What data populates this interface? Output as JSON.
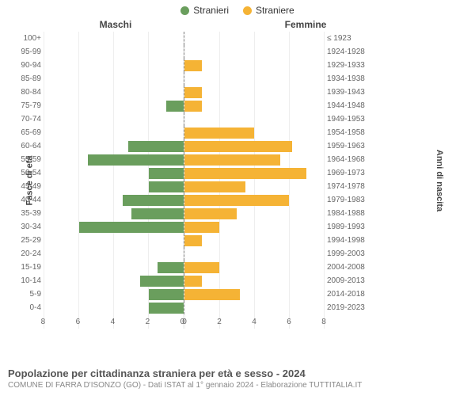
{
  "legend": {
    "male": {
      "label": "Stranieri",
      "color": "#6a9e5d"
    },
    "female": {
      "label": "Straniere",
      "color": "#f5b335"
    }
  },
  "headers": {
    "left": "Maschi",
    "right": "Femmine"
  },
  "axis_titles": {
    "left": "Fasce di età",
    "right": "Anni di nascita"
  },
  "chart": {
    "type": "population-pyramid",
    "xmax": 8,
    "xtick_step": 2,
    "xticks": [
      0,
      2,
      4,
      6,
      8
    ],
    "bar_color_left": "#6a9e5d",
    "bar_color_right": "#f5b335",
    "grid_color": "#eeeeee",
    "background": "#ffffff",
    "rows": [
      {
        "age": "100+",
        "year": "≤ 1923",
        "m": 0,
        "f": 0
      },
      {
        "age": "95-99",
        "year": "1924-1928",
        "m": 0,
        "f": 0
      },
      {
        "age": "90-94",
        "year": "1929-1933",
        "m": 0,
        "f": 1
      },
      {
        "age": "85-89",
        "year": "1934-1938",
        "m": 0,
        "f": 0
      },
      {
        "age": "80-84",
        "year": "1939-1943",
        "m": 0,
        "f": 1
      },
      {
        "age": "75-79",
        "year": "1944-1948",
        "m": 1,
        "f": 1
      },
      {
        "age": "70-74",
        "year": "1949-1953",
        "m": 0,
        "f": 0
      },
      {
        "age": "65-69",
        "year": "1954-1958",
        "m": 0,
        "f": 4
      },
      {
        "age": "60-64",
        "year": "1959-1963",
        "m": 3.2,
        "f": 6.2
      },
      {
        "age": "55-59",
        "year": "1964-1968",
        "m": 5.5,
        "f": 5.5
      },
      {
        "age": "50-54",
        "year": "1969-1973",
        "m": 2,
        "f": 7
      },
      {
        "age": "45-49",
        "year": "1974-1978",
        "m": 2,
        "f": 3.5
      },
      {
        "age": "40-44",
        "year": "1979-1983",
        "m": 3.5,
        "f": 6
      },
      {
        "age": "35-39",
        "year": "1984-1988",
        "m": 3,
        "f": 3
      },
      {
        "age": "30-34",
        "year": "1989-1993",
        "m": 6,
        "f": 2
      },
      {
        "age": "25-29",
        "year": "1994-1998",
        "m": 0,
        "f": 1
      },
      {
        "age": "20-24",
        "year": "1999-2003",
        "m": 0,
        "f": 0
      },
      {
        "age": "15-19",
        "year": "2004-2008",
        "m": 1.5,
        "f": 2
      },
      {
        "age": "10-14",
        "year": "2009-2013",
        "m": 2.5,
        "f": 1
      },
      {
        "age": "5-9",
        "year": "2014-2018",
        "m": 2,
        "f": 3.2
      },
      {
        "age": "0-4",
        "year": "2019-2023",
        "m": 2,
        "f": 0
      }
    ]
  },
  "footer": {
    "title": "Popolazione per cittadinanza straniera per età e sesso - 2024",
    "subtitle": "COMUNE DI FARRA D'ISONZO (GO) - Dati ISTAT al 1° gennaio 2024 - Elaborazione TUTTITALIA.IT"
  }
}
